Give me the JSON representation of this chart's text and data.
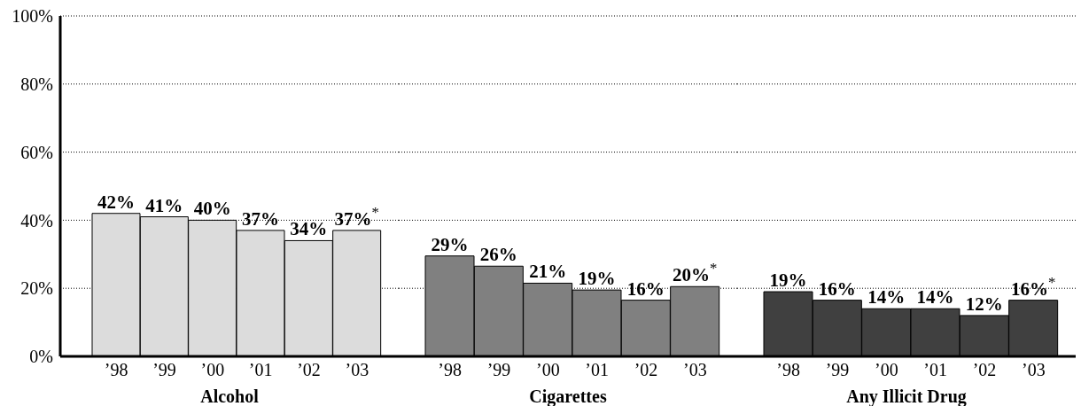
{
  "chart_data": [
    {
      "type": "bar",
      "xlabel": "Alcohol",
      "categories": [
        "’98",
        "’99",
        "’00",
        "’01",
        "’02",
        "’03"
      ],
      "values": [
        42,
        41,
        40,
        37,
        34,
        37
      ],
      "color": "#dcdcdc",
      "value_labels": [
        "42%",
        "41%",
        "40%",
        "37%",
        "34%",
        "37%$^{*}$"
      ],
      "ylim": [
        0,
        100
      ],
      "yticks": [
        {
          "value": 0,
          "label": "0%"
        },
        {
          "value": 20,
          "label": "20%"
        },
        {
          "value": 40,
          "label": "40%"
        },
        {
          "value": 60,
          "label": "60%"
        },
        {
          "value": 80,
          "label": "80%"
        },
        {
          "value": 100,
          "label": "100%"
        }
      ],
      "grid": "y"
    },
    {
      "type": "bar",
      "xlabel": "Cigarettes",
      "categories": [
        "’98",
        "’99",
        "’00",
        "’01",
        "’02",
        "’03"
      ],
      "values": [
        29.5,
        26.5,
        21.5,
        19.5,
        16.5,
        20.5
      ],
      "color": "#808080",
      "value_labels": [
        "29%",
        "26%",
        "21%",
        "19%",
        "16%",
        "20%$^{*}$"
      ],
      "ylim": [
        0,
        100
      ],
      "grid": "y",
      "tick_labels": "x"
    },
    {
      "type": "bar",
      "xlabel": "Any Illicit Drug",
      "categories": [
        "’98",
        "’99",
        "’00",
        "’01",
        "’02",
        "’03"
      ],
      "values": [
        19,
        16.5,
        14,
        14,
        12,
        16.5
      ],
      "color": "#404040",
      "value_labels": [
        "19%",
        "16%",
        "14%",
        "14%",
        "12%",
        "16%$^{*}$"
      ],
      "ylim": [
        0,
        100
      ],
      "grid": "y",
      "tick_labels": "x"
    }
  ]
}
